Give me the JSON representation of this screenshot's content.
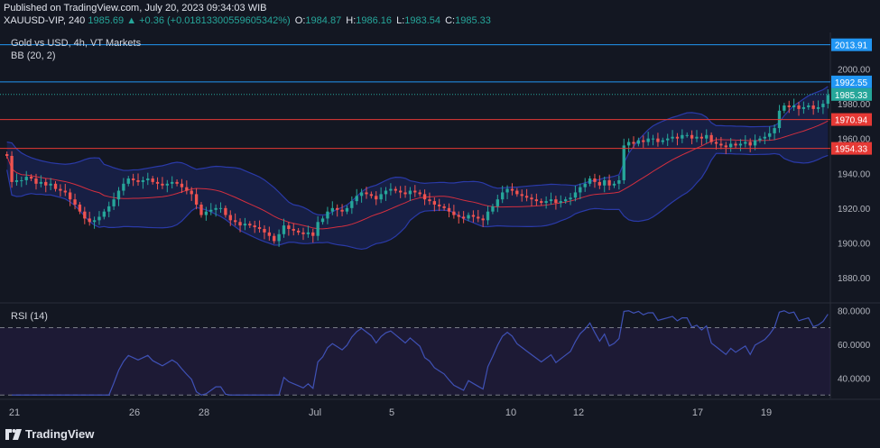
{
  "header": {
    "published": "Published on TradingView.com, July 20, 2023 09:34:03 WIB",
    "symbol": "XAUUSD-VIP, 240",
    "last": "1985.69",
    "change": "▲ +0.36 (+0.018133005596053​42%)",
    "o_label": "O:",
    "o_value": "1984.87",
    "h_label": "H:",
    "h_value": "1986.16",
    "l_label": "L:",
    "l_value": "1983.54",
    "c_label": "C:",
    "c_value": "1985.33"
  },
  "legend": {
    "title": "Gold vs USD, 4h, VT Markets",
    "bb": "BB (20, 2)",
    "rsi": "RSI (14)"
  },
  "footer": {
    "brand": "TradingView"
  },
  "colors": {
    "background": "#131722",
    "bull": "#26a69a",
    "bear": "#ef5350",
    "band": "#2a3aa8",
    "basis": "#d32f3f",
    "hline_blue": "#2196f3",
    "hline_red": "#e53935",
    "rsi_line": "#3f51b5",
    "rsi_bg": "#2a1f4d"
  },
  "chart_data": [
    {
      "type": "candlestick",
      "name": "Gold vs USD, 4h, VT Markets",
      "x_ticks": [
        "21",
        "26",
        "28",
        "Jul",
        "5",
        "10",
        "12",
        "17",
        "19"
      ],
      "y_ticks": [
        "2000.00",
        "1980.00",
        "1960.00",
        "1940.00",
        "1920.00",
        "1900.00",
        "1880.00"
      ],
      "ylim": [
        1866,
        2021
      ],
      "levels": [
        {
          "value": 2013.91,
          "label": "2013.91",
          "color": "#2196f3"
        },
        {
          "value": 1992.55,
          "label": "1992.55",
          "color": "#2196f3"
        },
        {
          "value": 1970.94,
          "label": "1970.94",
          "color": "#e53935"
        },
        {
          "value": 1954.33,
          "label": "1954.33",
          "color": "#e53935"
        }
      ],
      "last_price": {
        "value": 1985.33,
        "label": "1985.33"
      },
      "bb_period": 20,
      "bb_mult": 2,
      "close": [
        1950,
        1935,
        1936,
        1936,
        1938,
        1937,
        1934,
        1935,
        1933,
        1934,
        1931,
        1930,
        1929,
        1925,
        1922,
        1918,
        1914,
        1912,
        1913,
        1915,
        1918,
        1921,
        1925,
        1930,
        1934,
        1937,
        1936,
        1935,
        1936,
        1937,
        1935,
        1934,
        1933,
        1934,
        1935,
        1934,
        1932,
        1930,
        1928,
        1922,
        1916,
        1918,
        1919,
        1920,
        1920,
        1916,
        1913,
        1912,
        1910,
        1911,
        1910,
        1909,
        1908,
        1906,
        1904,
        1901,
        1905,
        1910,
        1908,
        1907,
        1906,
        1905,
        1906,
        1904,
        1912,
        1914,
        1918,
        1920,
        1919,
        1918,
        1920,
        1924,
        1927,
        1929,
        1928,
        1927,
        1925,
        1928,
        1930,
        1931,
        1930,
        1929,
        1928,
        1930,
        1929,
        1928,
        1925,
        1924,
        1922,
        1921,
        1920,
        1918,
        1916,
        1915,
        1914,
        1916,
        1915,
        1914,
        1913,
        1918,
        1921,
        1925,
        1929,
        1931,
        1930,
        1928,
        1927,
        1926,
        1925,
        1924,
        1923,
        1924,
        1925,
        1923,
        1924,
        1925,
        1926,
        1929,
        1932,
        1934,
        1937,
        1935,
        1933,
        1936,
        1933,
        1934,
        1936,
        1956,
        1958,
        1957,
        1959,
        1958,
        1960,
        1960,
        1958,
        1959,
        1960,
        1961,
        1960,
        1962,
        1962,
        1960,
        1961,
        1960,
        1962,
        1958,
        1957,
        1956,
        1955,
        1957,
        1956,
        1957,
        1958,
        1956,
        1959,
        1960,
        1961,
        1963,
        1966,
        1976,
        1979,
        1978,
        1979,
        1977,
        1978,
        1979,
        1977,
        1978,
        1980,
        1985
      ]
    },
    {
      "type": "line",
      "name": "RSI (14)",
      "y_ticks": [
        "80.0000",
        "60.0000",
        "40.0000"
      ],
      "ylim": [
        28,
        82
      ],
      "overbought": 70,
      "oversold": 30
    }
  ]
}
